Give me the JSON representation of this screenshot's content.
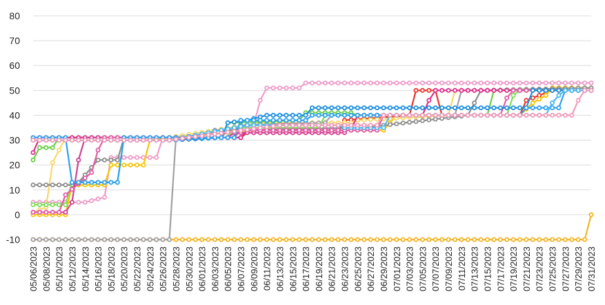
{
  "chart_data": {
    "type": "line",
    "title": "",
    "xlabel": "",
    "ylabel": "",
    "ylim": [
      -10,
      80
    ],
    "yticks": [
      -10,
      0,
      10,
      20,
      30,
      40,
      50,
      60,
      70,
      80
    ],
    "grid": "horizontal",
    "legend": "none",
    "x_start": "05/06/2023",
    "x_end": "07/31/2023",
    "xtick_labels": [
      "05/06/2023",
      "05/08/2023",
      "05/10/2023",
      "05/12/2023",
      "05/14/2023",
      "05/16/2023",
      "05/18/2023",
      "05/20/2023",
      "05/22/2023",
      "05/24/2023",
      "05/26/2023",
      "05/28/2023",
      "05/30/2023",
      "06/01/2023",
      "06/03/2023",
      "06/05/2023",
      "06/07/2023",
      "06/09/2023",
      "06/11/2023",
      "06/13/2023",
      "06/15/2023",
      "06/17/2023",
      "06/19/2023",
      "06/21/2023",
      "06/23/2023",
      "06/25/2023",
      "06/27/2023",
      "06/29/2023",
      "07/01/2023",
      "07/03/2023",
      "07/05/2023",
      "07/07/2023",
      "07/09/2023",
      "07/11/2023",
      "07/13/2023",
      "07/15/2023",
      "07/17/2023",
      "07/19/2023",
      "07/21/2023",
      "07/23/2023",
      "07/25/2023",
      "07/27/2023",
      "07/29/2023",
      "07/31/2023"
    ],
    "series": [
      {
        "color": "#ee9bc8",
        "points": [
          [
            "05/06/2023",
            5
          ],
          [
            "05/14/2023",
            5
          ],
          [
            "05/17/2023",
            7
          ],
          [
            "05/18/2023",
            23
          ],
          [
            "05/25/2023",
            23
          ],
          [
            "05/26/2023",
            31
          ],
          [
            "06/05/2023",
            31
          ],
          [
            "06/06/2023",
            35
          ],
          [
            "06/09/2023",
            36
          ],
          [
            "06/10/2023",
            46
          ],
          [
            "06/11/2023",
            51
          ],
          [
            "06/16/2023",
            51
          ],
          [
            "06/17/2023",
            53
          ],
          [
            "07/31/2023",
            53
          ]
        ]
      },
      {
        "color": "#e8342b",
        "points": [
          [
            "05/06/2023",
            31
          ],
          [
            "05/27/2023",
            31
          ],
          [
            "06/07/2023",
            31
          ],
          [
            "06/08/2023",
            33
          ],
          [
            "06/22/2023",
            33
          ],
          [
            "06/23/2023",
            38
          ],
          [
            "07/03/2023",
            40
          ],
          [
            "07/04/2023",
            50
          ],
          [
            "07/07/2023",
            50
          ],
          [
            "07/08/2023",
            40
          ],
          [
            "07/20/2023",
            40
          ],
          [
            "07/21/2023",
            46
          ],
          [
            "07/24/2023",
            49
          ],
          [
            "07/25/2023",
            50
          ],
          [
            "07/31/2023",
            50
          ]
        ]
      },
      {
        "color": "#f5c400",
        "points": [
          [
            "05/06/2023",
            0
          ],
          [
            "05/11/2023",
            0
          ],
          [
            "05/12/2023",
            12
          ],
          [
            "05/17/2023",
            12
          ],
          [
            "05/18/2023",
            20
          ],
          [
            "05/23/2023",
            20
          ],
          [
            "05/24/2023",
            30
          ],
          [
            "05/27/2023",
            31
          ],
          [
            "06/09/2023",
            34
          ],
          [
            "06/29/2023",
            34
          ],
          [
            "07/01/2023",
            40
          ],
          [
            "07/20/2023",
            40
          ],
          [
            "07/22/2023",
            45
          ],
          [
            "07/24/2023",
            48
          ],
          [
            "07/25/2023",
            51
          ],
          [
            "07/31/2023",
            51
          ]
        ]
      },
      {
        "color": "#f9d767",
        "points": [
          [
            "05/06/2023",
            1
          ],
          [
            "05/08/2023",
            3
          ],
          [
            "05/09/2023",
            21
          ],
          [
            "05/10/2023",
            26
          ],
          [
            "05/11/2023",
            31
          ],
          [
            "05/27/2023",
            31
          ],
          [
            "06/10/2023",
            37
          ],
          [
            "06/24/2023",
            37
          ],
          [
            "06/25/2023",
            38
          ],
          [
            "07/09/2023",
            40
          ],
          [
            "07/10/2023",
            50
          ],
          [
            "07/31/2023",
            50
          ]
        ]
      },
      {
        "color": "#f2b424",
        "points": [
          [
            "05/06/2023",
            -10
          ],
          [
            "05/27/2023",
            -10
          ],
          [
            "05/28/2023",
            -10
          ],
          [
            "07/30/2023",
            -10
          ],
          [
            "07/31/2023",
            0
          ]
        ]
      },
      {
        "color": "#a0a0a0",
        "points": [
          [
            "05/06/2023",
            -10
          ],
          [
            "05/27/2023",
            -10
          ],
          [
            "05/28/2023",
            31
          ],
          [
            "06/02/2023",
            31
          ],
          [
            "06/03/2023",
            34
          ],
          [
            "06/06/2023",
            34
          ],
          [
            "06/07/2023",
            36
          ],
          [
            "06/20/2023",
            37
          ],
          [
            "06/21/2023",
            40
          ],
          [
            "07/10/2023",
            40
          ],
          [
            "07/11/2023",
            50
          ],
          [
            "07/31/2023",
            50
          ]
        ]
      },
      {
        "color": "#8c8c8c",
        "points": [
          [
            "05/06/2023",
            12
          ],
          [
            "05/12/2023",
            12
          ],
          [
            "05/13/2023",
            13
          ],
          [
            "05/16/2023",
            22
          ],
          [
            "05/19/2023",
            22
          ],
          [
            "05/20/2023",
            31
          ],
          [
            "06/04/2023",
            31
          ],
          [
            "06/05/2023",
            34
          ],
          [
            "06/26/2023",
            35
          ],
          [
            "07/12/2023",
            40
          ],
          [
            "07/13/2023",
            45
          ],
          [
            "07/14/2023",
            50
          ],
          [
            "07/31/2023",
            51
          ]
        ]
      },
      {
        "color": "#69d045",
        "points": [
          [
            "05/06/2023",
            22
          ],
          [
            "05/07/2023",
            27
          ],
          [
            "05/09/2023",
            27
          ],
          [
            "05/10/2023",
            31
          ],
          [
            "06/04/2023",
            31
          ],
          [
            "06/05/2023",
            37
          ],
          [
            "06/16/2023",
            38
          ],
          [
            "06/17/2023",
            41
          ],
          [
            "06/24/2023",
            41
          ],
          [
            "06/25/2023",
            40
          ],
          [
            "07/15/2023",
            40
          ],
          [
            "07/16/2023",
            50
          ],
          [
            "07/31/2023",
            50
          ]
        ]
      },
      {
        "color": "#7adf58",
        "points": [
          [
            "05/06/2023",
            4
          ],
          [
            "05/11/2023",
            4
          ],
          [
            "05/12/2023",
            13
          ],
          [
            "05/19/2023",
            13
          ],
          [
            "05/20/2023",
            31
          ],
          [
            "06/05/2023",
            31
          ],
          [
            "06/06/2023",
            35
          ],
          [
            "06/19/2023",
            35
          ],
          [
            "06/20/2023",
            40
          ],
          [
            "07/18/2023",
            40
          ],
          [
            "07/19/2023",
            48
          ],
          [
            "07/20/2023",
            50
          ],
          [
            "07/31/2023",
            50
          ]
        ]
      },
      {
        "color": "#dd2d8c",
        "points": [
          [
            "05/06/2023",
            25
          ],
          [
            "05/07/2023",
            31
          ],
          [
            "06/07/2023",
            31
          ],
          [
            "06/08/2023",
            34
          ],
          [
            "06/24/2023",
            34
          ],
          [
            "06/25/2023",
            40
          ],
          [
            "07/05/2023",
            40
          ],
          [
            "07/06/2023",
            46
          ],
          [
            "07/07/2023",
            50
          ],
          [
            "07/31/2023",
            50
          ]
        ]
      },
      {
        "color": "#d33d93",
        "points": [
          [
            "05/06/2023",
            1
          ],
          [
            "05/11/2023",
            1
          ],
          [
            "05/12/2023",
            5
          ],
          [
            "05/13/2023",
            22
          ],
          [
            "05/14/2023",
            31
          ],
          [
            "06/05/2023",
            31
          ],
          [
            "06/06/2023",
            33
          ],
          [
            "06/23/2023",
            33
          ]
        ]
      },
      {
        "color": "#e35aa5",
        "points": [
          [
            "05/06/2023",
            1
          ],
          [
            "05/10/2023",
            1
          ],
          [
            "05/11/2023",
            8
          ],
          [
            "05/15/2023",
            17
          ],
          [
            "05/16/2023",
            26
          ],
          [
            "05/17/2023",
            31
          ],
          [
            "06/06/2023",
            31
          ],
          [
            "06/07/2023",
            34
          ],
          [
            "06/28/2023",
            34
          ],
          [
            "06/29/2023",
            40
          ],
          [
            "07/17/2023",
            40
          ],
          [
            "07/18/2023",
            47
          ],
          [
            "07/19/2023",
            50
          ],
          [
            "07/31/2023",
            50
          ]
        ]
      },
      {
        "color": "#1b8fe0",
        "points": [
          [
            "05/06/2023",
            30
          ],
          [
            "05/27/2023",
            30
          ],
          [
            "06/04/2023",
            31
          ],
          [
            "06/05/2023",
            37
          ],
          [
            "06/08/2023",
            38
          ],
          [
            "06/11/2023",
            40
          ],
          [
            "06/17/2023",
            40
          ],
          [
            "06/18/2023",
            43
          ],
          [
            "07/21/2023",
            43
          ],
          [
            "07/22/2023",
            50
          ],
          [
            "07/31/2023",
            50
          ]
        ]
      },
      {
        "color": "#2aa0f0",
        "points": [
          [
            "05/06/2023",
            31
          ],
          [
            "05/11/2023",
            31
          ],
          [
            "05/12/2023",
            13
          ],
          [
            "05/19/2023",
            13
          ],
          [
            "05/20/2023",
            31
          ],
          [
            "06/06/2023",
            31
          ],
          [
            "06/07/2023",
            38
          ],
          [
            "06/17/2023",
            38
          ],
          [
            "06/18/2023",
            40
          ],
          [
            "07/20/2023",
            40
          ],
          [
            "07/21/2023",
            43
          ],
          [
            "07/26/2023",
            43
          ],
          [
            "07/27/2023",
            50
          ],
          [
            "07/31/2023",
            50
          ]
        ]
      },
      {
        "color": "#4bb8f2",
        "points": [
          [
            "05/06/2023",
            30
          ],
          [
            "05/27/2023",
            30
          ],
          [
            "06/08/2023",
            36
          ],
          [
            "06/22/2023",
            36
          ],
          [
            "06/23/2023",
            35
          ],
          [
            "06/29/2023",
            35
          ],
          [
            "06/30/2023",
            40
          ],
          [
            "07/22/2023",
            40
          ],
          [
            "07/23/2023",
            40
          ],
          [
            "07/24/2023",
            40
          ],
          [
            "07/25/2023",
            45
          ],
          [
            "07/26/2023",
            48
          ],
          [
            "07/27/2023",
            50
          ],
          [
            "07/31/2023",
            50
          ]
        ]
      },
      {
        "color": "#f39ab7",
        "points": [
          [
            "05/06/2023",
            30
          ],
          [
            "05/27/2023",
            30
          ],
          [
            "06/13/2023",
            36
          ],
          [
            "06/28/2023",
            36
          ],
          [
            "06/29/2023",
            40
          ],
          [
            "07/27/2023",
            40
          ],
          [
            "07/28/2023",
            40
          ],
          [
            "07/29/2023",
            46
          ],
          [
            "07/30/2023",
            50
          ],
          [
            "07/31/2023",
            50
          ]
        ]
      }
    ]
  }
}
